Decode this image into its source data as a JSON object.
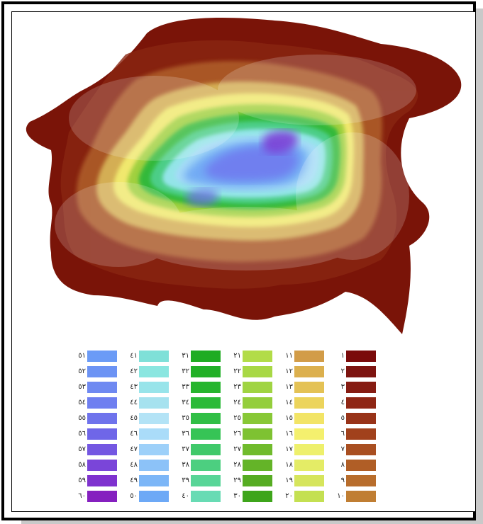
{
  "legend": {
    "columns": [
      {
        "labels": [
          "٥١",
          "٥٢",
          "٥٣",
          "٥٤",
          "٥٥",
          "٥٦",
          "٥٧",
          "٥٨",
          "٥٩",
          "٦٠"
        ],
        "colors": [
          "#6b9bf6",
          "#6c93f4",
          "#6f89f1",
          "#6f7ff0",
          "#6f73ec",
          "#6f66e8",
          "#7457e2",
          "#7a45d9",
          "#7f32cf",
          "#8520bf"
        ]
      },
      {
        "labels": [
          "٤١",
          "٤٢",
          "٤٣",
          "٤٤",
          "٤٥",
          "٤٦",
          "٤٧",
          "٤٨",
          "٤٩",
          "٥٠"
        ],
        "colors": [
          "#7fe0d8",
          "#8ae6e0",
          "#98e4ea",
          "#a6e2ef",
          "#b3e3f6",
          "#aadcf9",
          "#9dd0f9",
          "#8cc2f8",
          "#7cb6f7",
          "#6da9f6"
        ]
      },
      {
        "labels": [
          "٣١",
          "٣٢",
          "٣٣",
          "٣٤",
          "٣٥",
          "٣٦",
          "٣٧",
          "٣٨",
          "٣٩",
          "٤٠"
        ],
        "colors": [
          "#1fac22",
          "#22b027",
          "#26b52e",
          "#2bba38",
          "#30bf45",
          "#36c456",
          "#40c96a",
          "#4ccf80",
          "#58d597",
          "#68dbb4"
        ]
      },
      {
        "labels": [
          "٢١",
          "٢٢",
          "٢٣",
          "٢٤",
          "٢٥",
          "٢٦",
          "٢٧",
          "٢٨",
          "٢٩",
          "٣٠"
        ],
        "colors": [
          "#b2dc48",
          "#a8d845",
          "#a0d442",
          "#94ce3c",
          "#88c836",
          "#7ec232",
          "#70bb2c",
          "#64b428",
          "#56ac22",
          "#3ea51b"
        ]
      },
      {
        "labels": [
          "١١",
          "١٢",
          "١٣",
          "١٤",
          "١٥",
          "١٦",
          "١٧",
          "١٨",
          "١٩",
          "٢٠"
        ],
        "colors": [
          "#d29c48",
          "#dcb04e",
          "#e4c255",
          "#ecd45c",
          "#f2e466",
          "#f4f06e",
          "#eef06c",
          "#e4ec66",
          "#d6e55c",
          "#c4e052"
        ]
      },
      {
        "labels": [
          "١",
          "٢",
          "٣",
          "٤",
          "٥",
          "٦",
          "٧",
          "٨",
          "٩",
          "١٠"
        ],
        "colors": [
          "#7a0b0b",
          "#7d1410",
          "#861c12",
          "#8f2614",
          "#983318",
          "#a1411c",
          "#a94f21",
          "#b05e26",
          "#b86d2c",
          "#c07e33"
        ]
      }
    ]
  }
}
